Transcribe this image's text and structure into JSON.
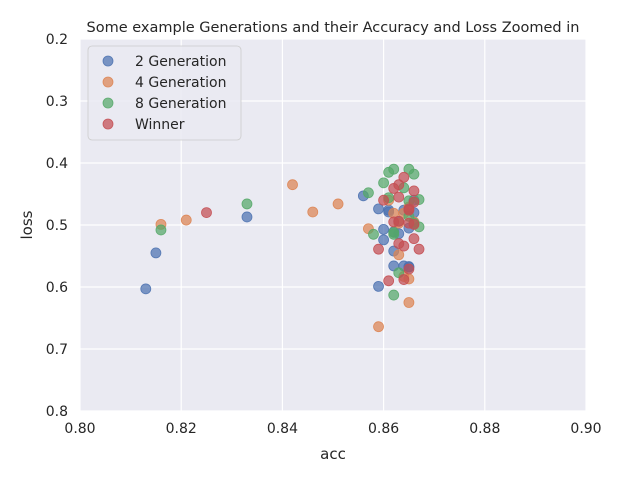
{
  "chart_data": {
    "type": "scatter",
    "title": "Some example Generations and their Accuracy and Loss Zoomed in",
    "xlabel": "acc",
    "ylabel": "loss",
    "xlim": [
      0.8,
      0.9
    ],
    "ylim": [
      0.2,
      0.8
    ],
    "y_inverted": true,
    "xticks": [
      "0.80",
      "0.82",
      "0.84",
      "0.86",
      "0.88",
      "0.90"
    ],
    "yticks": [
      "0.2",
      "0.3",
      "0.4",
      "0.5",
      "0.6",
      "0.7",
      "0.8"
    ],
    "grid": true,
    "legend_position": "top-left",
    "series": [
      {
        "name": "2 Generation",
        "color": "#4c72b0",
        "points": [
          [
            0.813,
            0.603
          ],
          [
            0.815,
            0.545
          ],
          [
            0.833,
            0.487
          ],
          [
            0.856,
            0.453
          ],
          [
            0.859,
            0.474
          ],
          [
            0.859,
            0.599
          ],
          [
            0.86,
            0.507
          ],
          [
            0.86,
            0.524
          ],
          [
            0.861,
            0.479
          ],
          [
            0.861,
            0.476
          ],
          [
            0.862,
            0.542
          ],
          [
            0.862,
            0.511
          ],
          [
            0.862,
            0.566
          ],
          [
            0.863,
            0.494
          ],
          [
            0.863,
            0.514
          ],
          [
            0.864,
            0.566
          ],
          [
            0.864,
            0.476
          ],
          [
            0.865,
            0.567
          ],
          [
            0.865,
            0.505
          ],
          [
            0.865,
            0.568
          ],
          [
            0.866,
            0.48
          ],
          [
            0.866,
            0.46
          ]
        ]
      },
      {
        "name": "4 Generation",
        "color": "#dd8452",
        "points": [
          [
            0.816,
            0.499
          ],
          [
            0.821,
            0.492
          ],
          [
            0.842,
            0.435
          ],
          [
            0.846,
            0.479
          ],
          [
            0.851,
            0.466
          ],
          [
            0.857,
            0.506
          ],
          [
            0.859,
            0.664
          ],
          [
            0.861,
            0.46
          ],
          [
            0.862,
            0.481
          ],
          [
            0.863,
            0.497
          ],
          [
            0.863,
            0.548
          ],
          [
            0.864,
            0.481
          ],
          [
            0.864,
            0.583
          ],
          [
            0.865,
            0.587
          ],
          [
            0.865,
            0.625
          ],
          [
            0.865,
            0.471
          ],
          [
            0.866,
            0.495
          ]
        ]
      },
      {
        "name": "8 Generation",
        "color": "#55a868",
        "points": [
          [
            0.816,
            0.508
          ],
          [
            0.833,
            0.466
          ],
          [
            0.857,
            0.448
          ],
          [
            0.858,
            0.515
          ],
          [
            0.86,
            0.432
          ],
          [
            0.861,
            0.415
          ],
          [
            0.861,
            0.456
          ],
          [
            0.862,
            0.41
          ],
          [
            0.862,
            0.613
          ],
          [
            0.862,
            0.512
          ],
          [
            0.862,
            0.515
          ],
          [
            0.863,
            0.577
          ],
          [
            0.864,
            0.44
          ],
          [
            0.865,
            0.41
          ],
          [
            0.865,
            0.461
          ],
          [
            0.865,
            0.486
          ],
          [
            0.866,
            0.418
          ],
          [
            0.866,
            0.497
          ],
          [
            0.867,
            0.459
          ],
          [
            0.867,
            0.503
          ]
        ]
      },
      {
        "name": "Winner",
        "color": "#c44e52",
        "points": [
          [
            0.825,
            0.48
          ],
          [
            0.859,
            0.539
          ],
          [
            0.86,
            0.46
          ],
          [
            0.861,
            0.59
          ],
          [
            0.862,
            0.441
          ],
          [
            0.862,
            0.495
          ],
          [
            0.863,
            0.435
          ],
          [
            0.863,
            0.455
          ],
          [
            0.863,
            0.53
          ],
          [
            0.863,
            0.494
          ],
          [
            0.864,
            0.423
          ],
          [
            0.864,
            0.534
          ],
          [
            0.864,
            0.588
          ],
          [
            0.865,
            0.476
          ],
          [
            0.865,
            0.474
          ],
          [
            0.865,
            0.497
          ],
          [
            0.865,
            0.571
          ],
          [
            0.866,
            0.522
          ],
          [
            0.866,
            0.445
          ],
          [
            0.866,
            0.463
          ],
          [
            0.866,
            0.499
          ],
          [
            0.867,
            0.539
          ]
        ]
      }
    ]
  }
}
